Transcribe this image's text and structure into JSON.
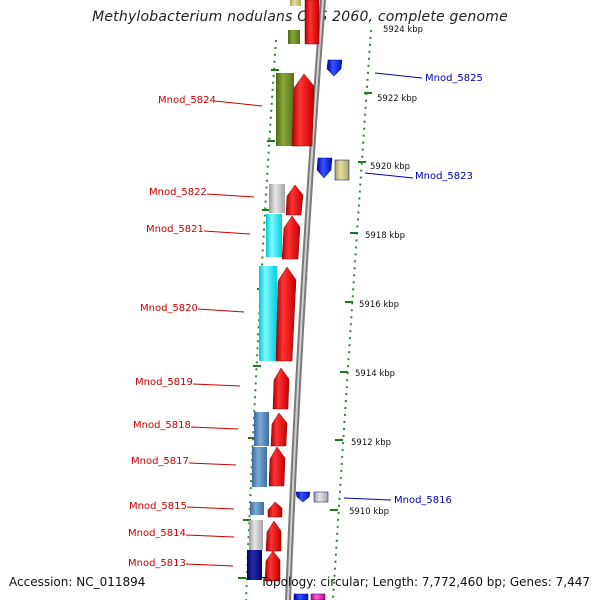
{
  "title": "Methylobacterium nodulans ORS 2060, complete genome",
  "accession": "Accession: NC_011894",
  "topology": "Topology: circular; Length: 7,772,460 bp; Genes: 7,447",
  "colors": {
    "reverse_label": "#cc0000",
    "forward_label": "#0000bb",
    "kbp_label": "#111111",
    "dots": "#2a8a2a",
    "backbone": "#8a8a8a",
    "cds_red": "#ee1111",
    "cds_blue": "#1133ee"
  },
  "kbp_ticks": [
    {
      "label": "5924 kbp",
      "text": "5924 kbp"
    },
    {
      "label": "5922 kbp",
      "text": "5922 kbp"
    },
    {
      "label": "5920 kbp",
      "text": "5920 kbp"
    },
    {
      "label": "5918 kbp",
      "text": "5918 kbp"
    },
    {
      "label": "5916 kbp",
      "text": "5916 kbp"
    },
    {
      "label": "5914 kbp",
      "text": "5914 kbp"
    },
    {
      "label": "5912 kbp",
      "text": "5912 kbp"
    },
    {
      "label": "5910 kbp",
      "text": "5910 kbp"
    }
  ],
  "reverse_genes": [
    {
      "name": "Mnod_5824"
    },
    {
      "name": "Mnod_5822"
    },
    {
      "name": "Mnod_5821"
    },
    {
      "name": "Mnod_5820"
    },
    {
      "name": "Mnod_5819"
    },
    {
      "name": "Mnod_5818"
    },
    {
      "name": "Mnod_5817"
    },
    {
      "name": "Mnod_5815"
    },
    {
      "name": "Mnod_5814"
    },
    {
      "name": "Mnod_5813"
    }
  ],
  "forward_genes": [
    {
      "name": "Mnod_5825"
    },
    {
      "name": "Mnod_5823"
    },
    {
      "name": "Mnod_5816"
    }
  ]
}
